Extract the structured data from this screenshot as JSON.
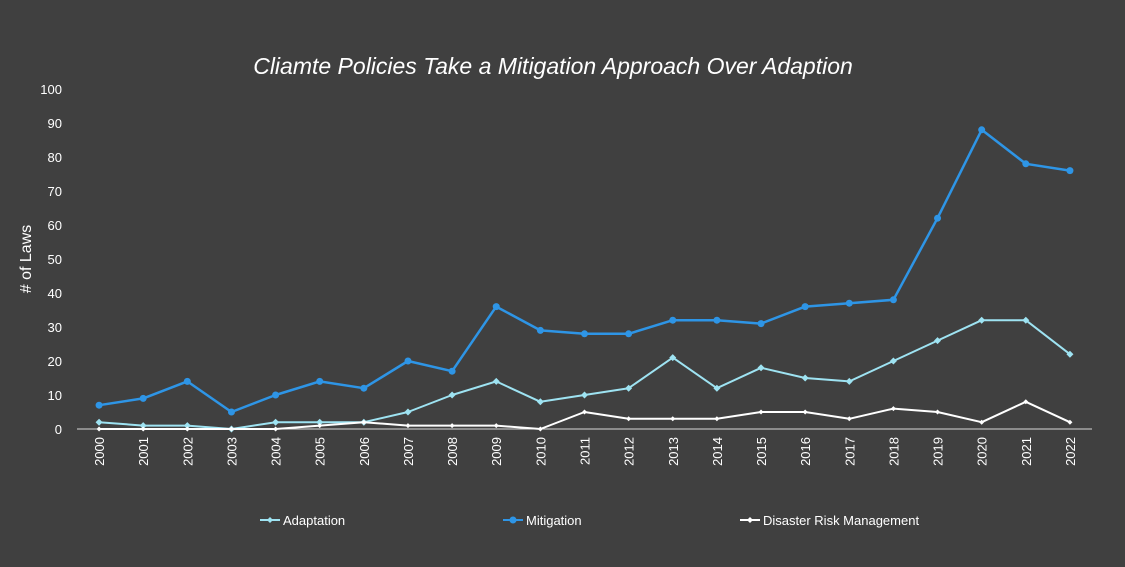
{
  "chart_data": {
    "type": "line",
    "title": "Cliamte Policies Take a Mitigation Approach Over Adaption",
    "xlabel": "",
    "ylabel": "# of Laws",
    "ylim": [
      0,
      100
    ],
    "yticks": [
      0,
      10,
      20,
      30,
      40,
      50,
      60,
      70,
      80,
      90,
      100
    ],
    "categories": [
      "2000",
      "2001",
      "2002",
      "2003",
      "2004",
      "2005",
      "2006",
      "2007",
      "2008",
      "2009",
      "2010",
      "2011",
      "2012",
      "2013",
      "2014",
      "2015",
      "2016",
      "2017",
      "2018",
      "2019",
      "2020",
      "2021",
      "2022"
    ],
    "series": [
      {
        "name": "Adaptation",
        "color": "#9ee3f2",
        "marker": "diamond",
        "values": [
          2,
          1,
          1,
          0,
          2,
          2,
          2,
          5,
          10,
          14,
          8,
          10,
          12,
          21,
          12,
          18,
          15,
          14,
          20,
          26,
          32,
          32,
          22
        ]
      },
      {
        "name": "Mitigation",
        "color": "#2e95e6",
        "marker": "circle",
        "values": [
          7,
          9,
          14,
          5,
          10,
          14,
          12,
          20,
          17,
          36,
          29,
          28,
          28,
          32,
          32,
          31,
          36,
          37,
          38,
          62,
          88,
          78,
          76
        ]
      },
      {
        "name": "Disaster Risk Management",
        "color": "#ffffff",
        "marker": "diamond",
        "values": [
          0,
          0,
          0,
          0,
          0,
          1,
          2,
          1,
          1,
          1,
          0,
          5,
          3,
          3,
          3,
          5,
          5,
          3,
          6,
          5,
          2,
          8,
          2
        ]
      }
    ],
    "grid": false,
    "legend": "bottom"
  }
}
